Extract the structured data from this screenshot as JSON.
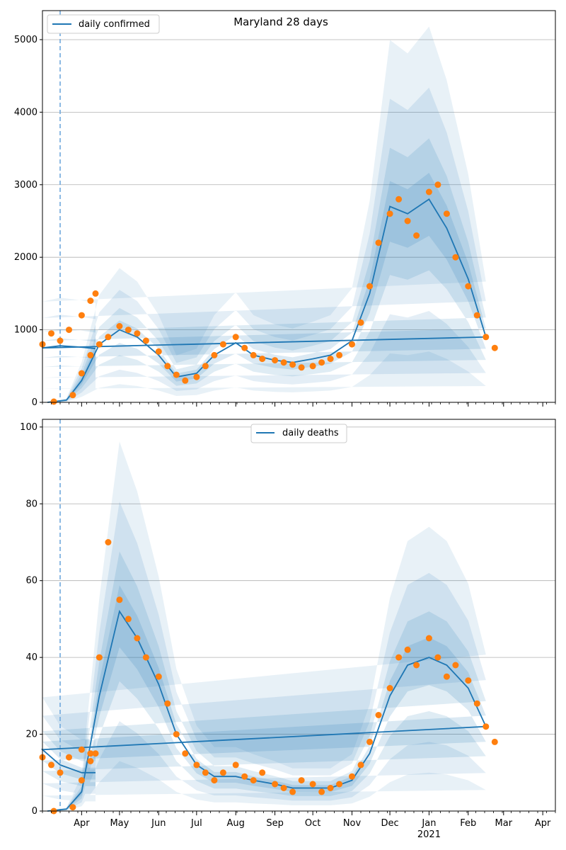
{
  "chart_data": [
    {
      "type": "line",
      "title": "Maryland 28 days",
      "xlabel": "",
      "ylabel": "",
      "ylim": [
        0,
        5400
      ],
      "yticks": [
        0,
        1000,
        2000,
        3000,
        4000,
        5000
      ],
      "xticks": [
        "Apr",
        "May",
        "Jun",
        "Jul",
        "Aug",
        "Sep",
        "Oct",
        "Nov",
        "Dec",
        "Jan",
        "Feb",
        "Mar",
        "Apr"
      ],
      "year_label": "2021",
      "legend": {
        "position": "top-left",
        "entries": [
          "daily confirmed"
        ]
      },
      "grid": "horizontal",
      "forecast_start": "Mar 15",
      "series": [
        {
          "name": "daily confirmed",
          "style": "line",
          "color": "#1f77b4",
          "x": [
            "Mar 5",
            "Mar 20",
            "Apr 1",
            "Apr 15",
            "May 1",
            "May 15",
            "Jun 1",
            "Jun 15",
            "Jul 1",
            "Jul 15",
            "Aug 1",
            "Aug 15",
            "Sep 1",
            "Sep 15",
            "Oct 1",
            "Oct 15",
            "Nov 1",
            "Nov 15",
            "Dec 1",
            "Dec 15",
            "Jan 1",
            "Jan 15",
            "Feb 1",
            "Feb 15",
            "Mar 1",
            "Mar 15",
            "Apr 1",
            "Apr 12"
          ],
          "values": [
            0,
            30,
            300,
            800,
            1000,
            900,
            650,
            350,
            400,
            650,
            820,
            650,
            580,
            550,
            600,
            650,
            850,
            1500,
            2700,
            2600,
            2800,
            2400,
            1700,
            900,
            750,
            780,
            760,
            740
          ]
        },
        {
          "name": "observed daily confirmed",
          "style": "points",
          "color": "#ff7f0e",
          "x": [
            "Mar 10",
            "Mar 25",
            "Apr 1",
            "Apr 8",
            "Apr 15",
            "Apr 22",
            "May 1",
            "May 8",
            "May 15",
            "May 22",
            "Jun 1",
            "Jun 8",
            "Jun 15",
            "Jun 22",
            "Jul 1",
            "Jul 8",
            "Jul 15",
            "Jul 22",
            "Aug 1",
            "Aug 8",
            "Aug 15",
            "Aug 22",
            "Sep 1",
            "Sep 8",
            "Sep 15",
            "Sep 22",
            "Oct 1",
            "Oct 8",
            "Oct 15",
            "Oct 22",
            "Nov 1",
            "Nov 8",
            "Nov 15",
            "Nov 22",
            "Dec 1",
            "Dec 8",
            "Dec 15",
            "Dec 22",
            "Jan 1",
            "Jan 8",
            "Jan 15",
            "Jan 22",
            "Feb 1",
            "Feb 8",
            "Feb 15",
            "Feb 22",
            "Mar 1",
            "Mar 8",
            "Mar 15",
            "Mar 22",
            "Apr 1",
            "Apr 8",
            "Apr 12"
          ],
          "values": [
            10,
            100,
            400,
            650,
            800,
            900,
            1050,
            1000,
            950,
            850,
            700,
            500,
            380,
            300,
            350,
            500,
            650,
            800,
            900,
            750,
            650,
            600,
            580,
            550,
            520,
            480,
            500,
            550,
            600,
            650,
            800,
            1100,
            1600,
            2200,
            2600,
            2800,
            2500,
            2300,
            2900,
            3000,
            2600,
            2000,
            1600,
            1200,
            900,
            750,
            800,
            950,
            850,
            1000,
            1200,
            1400,
            1500
          ]
        }
      ]
    },
    {
      "type": "line",
      "title": "",
      "xlabel": "",
      "ylabel": "",
      "ylim": [
        0,
        102
      ],
      "yticks": [
        0,
        20,
        40,
        60,
        80,
        100
      ],
      "xticks": [
        "Apr",
        "May",
        "Jun",
        "Jul",
        "Aug",
        "Sep",
        "Oct",
        "Nov",
        "Dec",
        "Jan",
        "Feb",
        "Mar",
        "Apr"
      ],
      "year_label": "2021",
      "legend": {
        "position": "top-center",
        "entries": [
          "daily deaths"
        ]
      },
      "grid": "horizontal",
      "forecast_start": "Mar 15",
      "series": [
        {
          "name": "daily deaths",
          "style": "line",
          "color": "#1f77b4",
          "x": [
            "Mar 5",
            "Mar 20",
            "Apr 1",
            "Apr 15",
            "May 1",
            "May 15",
            "Jun 1",
            "Jun 15",
            "Jul 1",
            "Jul 15",
            "Aug 1",
            "Aug 15",
            "Sep 1",
            "Sep 15",
            "Oct 1",
            "Oct 15",
            "Nov 1",
            "Nov 15",
            "Dec 1",
            "Dec 15",
            "Jan 1",
            "Jan 15",
            "Feb 1",
            "Feb 15",
            "Mar 1",
            "Mar 15",
            "Apr 1",
            "Apr 12"
          ],
          "values": [
            0,
            0.5,
            5,
            30,
            52,
            45,
            33,
            20,
            12,
            9,
            9,
            8,
            7,
            6,
            6,
            6,
            8,
            15,
            30,
            38,
            40,
            38,
            32,
            22,
            16,
            12,
            10,
            10
          ]
        },
        {
          "name": "observed daily deaths",
          "style": "points",
          "color": "#ff7f0e",
          "x": [
            "Mar 10",
            "Mar 25",
            "Apr 1",
            "Apr 8",
            "Apr 15",
            "Apr 22",
            "May 1",
            "May 8",
            "May 15",
            "May 22",
            "Jun 1",
            "Jun 8",
            "Jun 15",
            "Jun 22",
            "Jul 1",
            "Jul 8",
            "Jul 15",
            "Jul 22",
            "Aug 1",
            "Aug 8",
            "Aug 15",
            "Aug 22",
            "Sep 1",
            "Sep 8",
            "Sep 15",
            "Sep 22",
            "Oct 1",
            "Oct 8",
            "Oct 15",
            "Oct 22",
            "Nov 1",
            "Nov 8",
            "Nov 15",
            "Nov 22",
            "Dec 1",
            "Dec 8",
            "Dec 15",
            "Dec 22",
            "Jan 1",
            "Jan 8",
            "Jan 15",
            "Jan 22",
            "Feb 1",
            "Feb 8",
            "Feb 15",
            "Feb 22",
            "Mar 1",
            "Mar 8",
            "Mar 15",
            "Mar 22",
            "Apr 1",
            "Apr 8",
            "Apr 12"
          ],
          "values": [
            0,
            1,
            8,
            15,
            40,
            70,
            55,
            50,
            45,
            40,
            35,
            28,
            20,
            15,
            12,
            10,
            8,
            10,
            12,
            9,
            8,
            10,
            7,
            6,
            5,
            8,
            7,
            5,
            6,
            7,
            9,
            12,
            18,
            25,
            32,
            40,
            42,
            38,
            45,
            40,
            35,
            38,
            34,
            28,
            22,
            18,
            14,
            12,
            10,
            14,
            16,
            13,
            15
          ]
        }
      ]
    }
  ]
}
